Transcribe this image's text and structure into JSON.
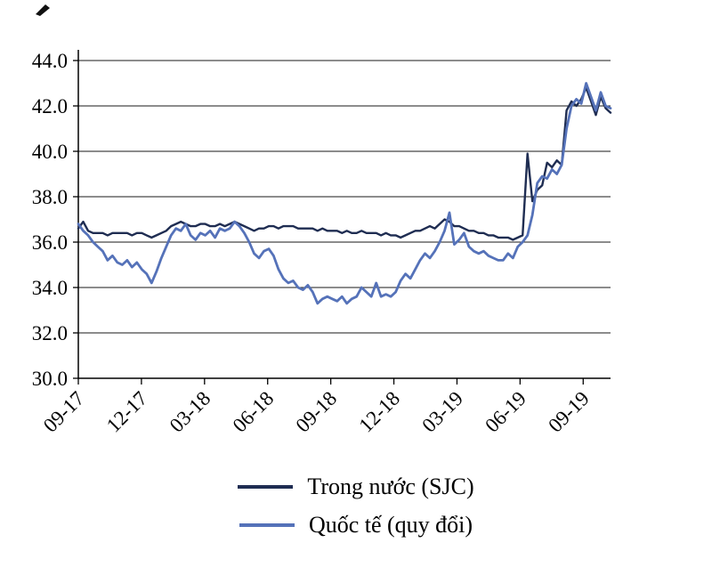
{
  "page": {
    "background": "#ffffff"
  },
  "chart_data": {
    "type": "line",
    "grid": "horizontal-solid",
    "legend_position": "bottom",
    "ylim": [
      30.0,
      44.0
    ],
    "y_ticks": [
      30.0,
      32.0,
      34.0,
      36.0,
      38.0,
      40.0,
      42.0,
      44.0
    ],
    "y_tick_format_decimals": 1,
    "x_total_months": 25.3,
    "x_ticks": {
      "positions_months": [
        0,
        3,
        6,
        9,
        12,
        15,
        18,
        21,
        24
      ],
      "labels": [
        "09-17",
        "12-17",
        "03-18",
        "06-18",
        "09-18",
        "12-18",
        "03-19",
        "06-19",
        "09-19"
      ]
    },
    "series": [
      {
        "name": "Trong nước (SJC)",
        "color": "#1f2d52",
        "values": [
          36.6,
          36.9,
          36.5,
          36.4,
          36.4,
          36.4,
          36.3,
          36.4,
          36.4,
          36.4,
          36.4,
          36.3,
          36.4,
          36.4,
          36.3,
          36.2,
          36.3,
          36.4,
          36.5,
          36.7,
          36.8,
          36.9,
          36.8,
          36.7,
          36.7,
          36.8,
          36.8,
          36.7,
          36.7,
          36.8,
          36.7,
          36.8,
          36.9,
          36.8,
          36.7,
          36.6,
          36.5,
          36.6,
          36.6,
          36.7,
          36.7,
          36.6,
          36.7,
          36.7,
          36.7,
          36.6,
          36.6,
          36.6,
          36.6,
          36.5,
          36.6,
          36.5,
          36.5,
          36.5,
          36.4,
          36.5,
          36.4,
          36.4,
          36.5,
          36.4,
          36.4,
          36.4,
          36.3,
          36.4,
          36.3,
          36.3,
          36.2,
          36.3,
          36.4,
          36.5,
          36.5,
          36.6,
          36.7,
          36.6,
          36.8,
          37.0,
          36.9,
          36.7,
          36.7,
          36.6,
          36.5,
          36.5,
          36.4,
          36.4,
          36.3,
          36.3,
          36.2,
          36.2,
          36.2,
          36.1,
          36.2,
          36.3,
          39.9,
          37.8,
          38.3,
          38.5,
          39.5,
          39.3,
          39.6,
          39.4,
          41.8,
          42.2,
          42.0,
          42.3,
          42.8,
          42.2,
          41.6,
          42.4,
          41.9,
          41.7
        ]
      },
      {
        "name": "Quốc tế (quy đổi)",
        "color": "#5572b9",
        "values": [
          36.8,
          36.5,
          36.3,
          36.0,
          35.8,
          35.6,
          35.2,
          35.4,
          35.1,
          35.0,
          35.2,
          34.9,
          35.1,
          34.8,
          34.6,
          34.2,
          34.7,
          35.3,
          35.8,
          36.3,
          36.6,
          36.5,
          36.8,
          36.3,
          36.1,
          36.4,
          36.3,
          36.5,
          36.2,
          36.6,
          36.5,
          36.6,
          36.9,
          36.7,
          36.4,
          36.0,
          35.5,
          35.3,
          35.6,
          35.7,
          35.4,
          34.8,
          34.4,
          34.2,
          34.3,
          34.0,
          33.9,
          34.1,
          33.8,
          33.3,
          33.5,
          33.6,
          33.5,
          33.4,
          33.6,
          33.3,
          33.5,
          33.6,
          34.0,
          33.8,
          33.6,
          34.2,
          33.6,
          33.7,
          33.6,
          33.8,
          34.3,
          34.6,
          34.4,
          34.8,
          35.2,
          35.5,
          35.3,
          35.6,
          36.0,
          36.5,
          37.3,
          35.9,
          36.1,
          36.4,
          35.8,
          35.6,
          35.5,
          35.6,
          35.4,
          35.3,
          35.2,
          35.2,
          35.5,
          35.3,
          35.8,
          36.0,
          36.3,
          37.2,
          38.6,
          38.9,
          38.8,
          39.2,
          39.0,
          39.4,
          41.0,
          42.0,
          42.3,
          42.1,
          43.0,
          42.4,
          41.8,
          42.6,
          42.0,
          41.9
        ]
      }
    ]
  }
}
